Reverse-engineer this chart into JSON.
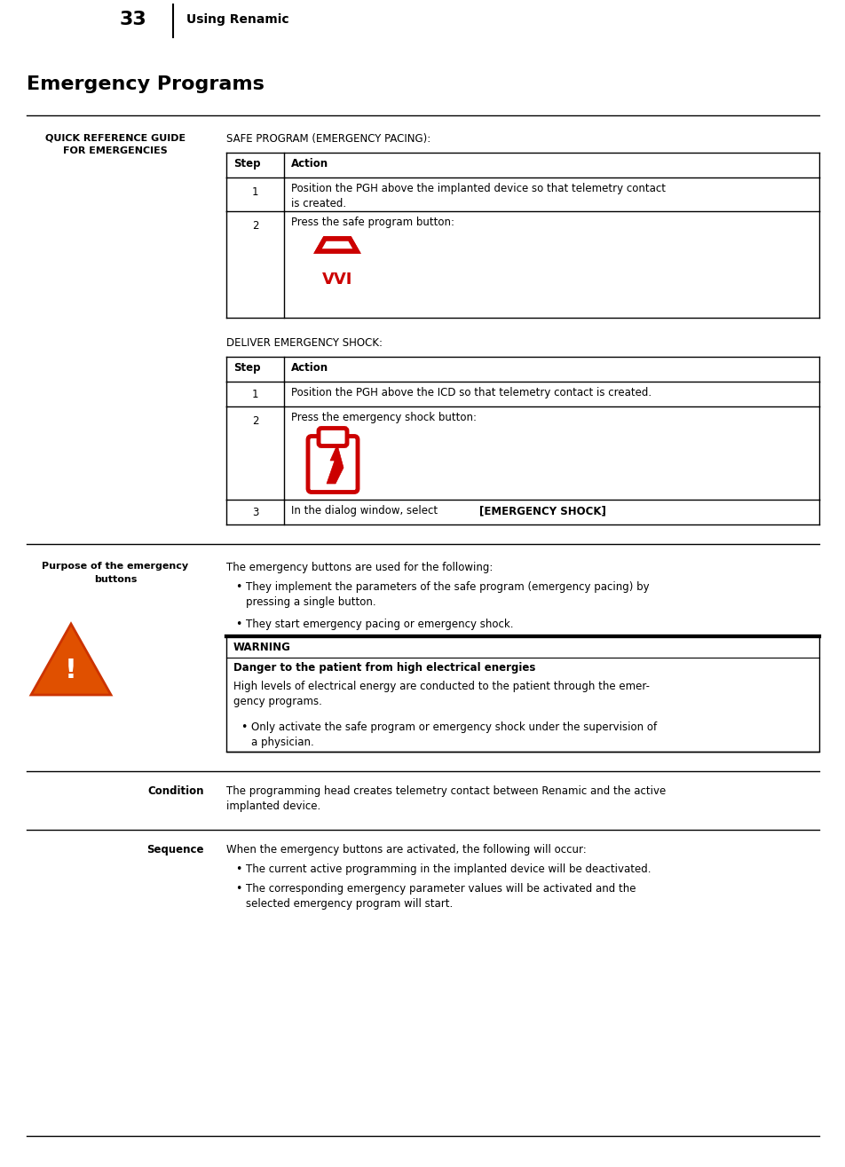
{
  "page_number": "33",
  "page_header": "Using Renamic",
  "title": "Emergency Programs",
  "bg_color": "#ffffff",
  "safe_program_title": "SAFE PROGRAM (EMERGENCY PACING):",
  "deliver_shock_title": "DELIVER EMERGENCY SHOCK:",
  "section1_label": "QUICK REFERENCE GUIDE\nFOR EMERGENCIES",
  "section2_label": "Purpose of the emergency\nbuttons",
  "purpose_text": "The emergency buttons are used for the following:",
  "purpose_bullet1": "They implement the parameters of the safe program (emergency pacing) by\npressing a single button.",
  "purpose_bullet2": "They start emergency pacing or emergency shock.",
  "warning_title": "WARNING",
  "warning_subtitle": "Danger to the patient from high electrical energies",
  "warning_body": "High levels of electrical energy are conducted to the patient through the emer-\ngency programs.",
  "warning_bullet": "Only activate the safe program or emergency shock under the supervision of\na physician.",
  "condition_label": "Condition",
  "condition_text": "The programming head creates telemetry contact between Renamic and the active\nimplanted device.",
  "sequence_label": "Sequence",
  "sequence_text": "When the emergency buttons are activated, the following will occur:",
  "seq_bullet1": "The current active programming in the implanted device will be deactivated.",
  "seq_bullet2": "The corresponding emergency parameter values will be activated and the\nselected emergency program will start.",
  "red_color": "#cc0000",
  "orange_red": "#cc3300",
  "warn_orange": "#e05000"
}
